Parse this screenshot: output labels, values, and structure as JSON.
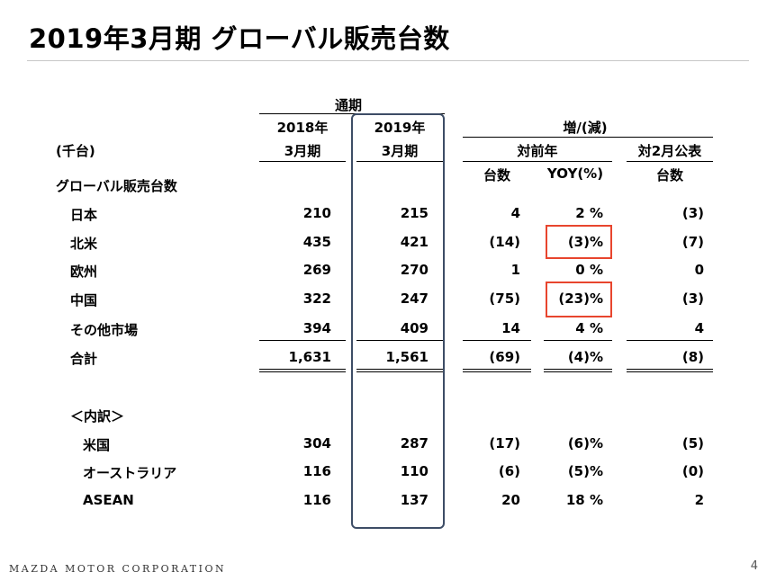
{
  "title": "2019年3月期 グローバル販売台数",
  "header": {
    "period_label": "通期",
    "col_2018_year": "2018年",
    "col_2018_month": "3月期",
    "col_2019_year": "2019年",
    "col_2019_month": "3月期",
    "change_label": "増/(減)",
    "unit_label": "(千台)",
    "yoy_group": "対前年",
    "feb_group": "対2月公表",
    "units_label": "台数",
    "yoy_pct_label": "YOY(%)",
    "feb_units_label": "台数",
    "section_label": "グローバル販売台数"
  },
  "rows": [
    {
      "label": "日本",
      "y2018": "210",
      "y2019": "215",
      "units": "4",
      "yoy": "2 %",
      "feb": "(3)"
    },
    {
      "label": "北米",
      "y2018": "435",
      "y2019": "421",
      "units": "(14)",
      "yoy": "(3)%",
      "feb": "(7)"
    },
    {
      "label": "欧州",
      "y2018": "269",
      "y2019": "270",
      "units": "1",
      "yoy": "0 %",
      "feb": "0"
    },
    {
      "label": "中国",
      "y2018": "322",
      "y2019": "247",
      "units": "(75)",
      "yoy": "(23)%",
      "feb": "(3)"
    },
    {
      "label": "その他市場",
      "y2018": "394",
      "y2019": "409",
      "units": "14",
      "yoy": "4 %",
      "feb": "4"
    }
  ],
  "total": {
    "label": "合計",
    "y2018": "1,631",
    "y2019": "1,561",
    "units": "(69)",
    "yoy": "(4)%",
    "feb": "(8)"
  },
  "breakdown_label": "＜内訳＞",
  "breakdown": [
    {
      "label": "米国",
      "y2018": "304",
      "y2019": "287",
      "units": "(17)",
      "yoy": "(6)%",
      "feb": "(5)"
    },
    {
      "label": "オーストラリア",
      "y2018": "116",
      "y2019": "110",
      "units": "(6)",
      "yoy": "(5)%",
      "feb": "(0)"
    },
    {
      "label": "ASEAN",
      "y2018": "116",
      "y2019": "137",
      "units": "20",
      "yoy": "18 %",
      "feb": "2"
    }
  ],
  "footer": {
    "company": "MAZDA MOTOR CORPORATION",
    "page": "4"
  },
  "colors": {
    "highlight_column_border": "#3d4d66",
    "callout_border": "#e8452e"
  }
}
